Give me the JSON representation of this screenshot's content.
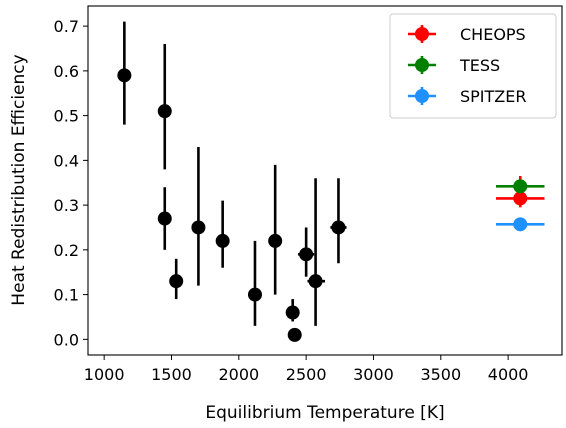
{
  "chart_data": {
    "type": "scatter",
    "xlabel": "Equilibrium Temperature [K]",
    "ylabel": "Heat Redistribution Efficiency",
    "xlim": [
      880,
      4400
    ],
    "ylim": [
      -0.035,
      0.745
    ],
    "xticks": [
      1000,
      1500,
      2000,
      2500,
      3000,
      3500,
      4000
    ],
    "yticks": [
      0.0,
      0.1,
      0.2,
      0.3,
      0.4,
      0.5,
      0.6,
      0.7
    ],
    "ytick_labels": [
      "0.0",
      "0.1",
      "0.2",
      "0.3",
      "0.4",
      "0.5",
      "0.6",
      "0.7"
    ],
    "grid": false,
    "legend_position": "top-right",
    "series": [
      {
        "color": "#000000",
        "points": [
          {
            "x": 1150,
            "y": 0.59,
            "ylo": 0.48,
            "yhi": 0.71
          },
          {
            "x": 1450,
            "y": 0.51,
            "ylo": 0.38,
            "yhi": 0.66
          },
          {
            "x": 1450,
            "y": 0.27,
            "ylo": 0.2,
            "yhi": 0.34
          },
          {
            "x": 1535,
            "y": 0.13,
            "ylo": 0.09,
            "yhi": 0.18
          },
          {
            "x": 1700,
            "y": 0.25,
            "ylo": 0.12,
            "yhi": 0.43
          },
          {
            "x": 1880,
            "y": 0.22,
            "ylo": 0.16,
            "yhi": 0.31
          },
          {
            "x": 2120,
            "y": 0.1,
            "ylo": 0.03,
            "yhi": 0.22
          },
          {
            "x": 2270,
            "y": 0.22,
            "ylo": 0.1,
            "yhi": 0.39
          },
          {
            "x": 2400,
            "y": 0.06,
            "ylo": 0.04,
            "yhi": 0.09
          },
          {
            "x": 2415,
            "y": 0.01,
            "ylo": 0.0,
            "yhi": 0.02
          },
          {
            "x": 2500,
            "y": 0.19,
            "ylo": 0.14,
            "yhi": 0.25,
            "xlo": 2440,
            "xhi": 2560
          },
          {
            "x": 2570,
            "y": 0.13,
            "ylo": 0.03,
            "yhi": 0.36,
            "xlo": 2510,
            "xhi": 2640
          },
          {
            "x": 2740,
            "y": 0.25,
            "ylo": 0.17,
            "yhi": 0.36,
            "xlo": 2680,
            "xhi": 2800
          }
        ]
      },
      {
        "name": "CHEOPS",
        "color": "#ff0000",
        "points": [
          {
            "x": 4090,
            "y": 0.315,
            "ylo": 0.295,
            "yhi": 0.365,
            "xlo": 3910,
            "xhi": 4270
          }
        ]
      },
      {
        "name": "TESS",
        "color": "#008000",
        "points": [
          {
            "x": 4090,
            "y": 0.342,
            "ylo": 0.327,
            "yhi": 0.357,
            "xlo": 3910,
            "xhi": 4270
          }
        ]
      },
      {
        "name": "SPITZER",
        "color": "#1e90ff",
        "points": [
          {
            "x": 4090,
            "y": 0.257,
            "ylo": 0.247,
            "yhi": 0.267,
            "xlo": 3910,
            "xhi": 4270
          }
        ]
      }
    ]
  }
}
